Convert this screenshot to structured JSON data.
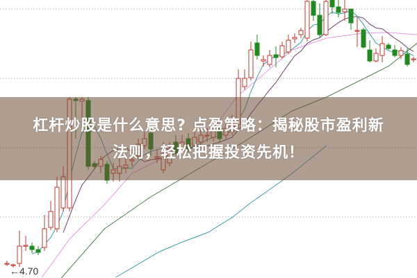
{
  "title": {
    "line1": "杠杆炒股是什么意思? 点盈策略：揭秘股市盈利新",
    "line2": "法则，轻松把握投资先机！"
  },
  "chart_data": {
    "type": "candlestick",
    "price_label": "←4.70",
    "grid": "horizontal-dotted",
    "colors": {
      "up": "#c8342a",
      "down": "#1f8a1f",
      "ma_short": "#3a9ea6",
      "ma_mid": "#6b3f6b",
      "ma_pink": "#e69be6",
      "ma_green": "#4d7d4d",
      "ma_long_cyan": "#3a9ea6"
    },
    "candles": [
      [
        4.8,
        4.8,
        4.84,
        4.76
      ],
      [
        4.77,
        4.78,
        4.8,
        4.74
      ],
      [
        4.8,
        5.05,
        5.27,
        4.75
      ],
      [
        5.05,
        5.06,
        5.2,
        4.98
      ],
      [
        5.05,
        5.0,
        5.1,
        4.95
      ],
      [
        5.0,
        4.96,
        5.05,
        4.92
      ],
      [
        5.03,
        5.3,
        5.5,
        4.98
      ],
      [
        5.32,
        5.55,
        5.7,
        5.28
      ],
      [
        5.3,
        5.9,
        6.05,
        5.25
      ],
      [
        5.6,
        6.05,
        6.2,
        5.55
      ],
      [
        5.6,
        7.17,
        7.2,
        5.55
      ],
      [
        7.17,
        7.15,
        7.2,
        6.6
      ],
      [
        7.14,
        7.17,
        7.2,
        6.9
      ],
      [
        7.15,
        6.2,
        7.2,
        6.15
      ],
      [
        6.24,
        6.2,
        6.28,
        6.16
      ],
      [
        6.2,
        6.3,
        6.35,
        6.1
      ],
      [
        6.23,
        6.0,
        6.28,
        5.95
      ],
      [
        6.1,
        6.15,
        6.25,
        5.98
      ],
      [
        6.1,
        6.2,
        6.35,
        5.98
      ],
      [
        6.18,
        6.22,
        6.38,
        6.1
      ],
      [
        6.28,
        6.3,
        6.45,
        6.2
      ],
      [
        6.35,
        6.52,
        6.6,
        6.3
      ],
      [
        6.5,
        6.6,
        6.7,
        6.45
      ],
      [
        6.68,
        6.45,
        6.75,
        6.35
      ],
      [
        6.32,
        6.34,
        6.45,
        6.25
      ],
      [
        6.15,
        6.4,
        6.55,
        6.1
      ],
      [
        6.25,
        6.45,
        6.55,
        6.2
      ],
      [
        6.55,
        6.4,
        6.65,
        6.35
      ],
      [
        6.42,
        6.55,
        6.65,
        6.38
      ],
      [
        6.6,
        6.45,
        6.68,
        6.38
      ],
      [
        6.5,
        6.62,
        6.7,
        6.45
      ],
      [
        6.55,
        6.65,
        6.75,
        6.5
      ],
      [
        6.64,
        6.65,
        6.75,
        6.55
      ],
      [
        6.62,
        6.72,
        6.82,
        6.56
      ],
      [
        6.75,
        6.6,
        6.8,
        6.55
      ],
      [
        6.65,
        6.75,
        6.85,
        6.6
      ],
      [
        6.7,
        6.82,
        6.95,
        6.65
      ],
      [
        6.8,
        7.47,
        7.6,
        6.75
      ],
      [
        7.35,
        7.47,
        7.6,
        7.3
      ],
      [
        7.48,
        7.88,
        8.0,
        7.44
      ],
      [
        7.98,
        7.8,
        8.1,
        7.74
      ],
      [
        7.72,
        7.74,
        7.8,
        7.64
      ],
      [
        7.67,
        7.8,
        7.88,
        7.63
      ],
      [
        7.81,
        7.77,
        7.93,
        7.63
      ],
      [
        7.78,
        7.94,
        8.0,
        7.75
      ],
      [
        7.85,
        8.02,
        8.1,
        7.82
      ],
      [
        8.04,
        8.06,
        8.12,
        7.98
      ],
      [
        8.1,
        8.16,
        8.2,
        8.05
      ],
      [
        8.05,
        8.58,
        8.6,
        8.0
      ],
      [
        8.58,
        8.38,
        8.6,
        8.3
      ],
      [
        8.38,
        8.1,
        8.55,
        8.05
      ],
      [
        8.1,
        8.58,
        8.6,
        8.08
      ],
      [
        8.6,
        8.5,
        8.6,
        8.4
      ],
      [
        8.5,
        8.42,
        8.6,
        8.35
      ],
      [
        8.43,
        8.47,
        8.6,
        8.3
      ],
      [
        8.47,
        8.27,
        8.47,
        8.17
      ],
      [
        8.16,
        8.16,
        8.35,
        7.92
      ],
      [
        8.17,
        7.92,
        8.2,
        7.9
      ],
      [
        7.88,
        7.72,
        8.02,
        7.7
      ],
      [
        7.72,
        7.83,
        7.9,
        7.7
      ],
      [
        7.8,
        7.97,
        8.08,
        7.7
      ],
      [
        7.95,
        7.9,
        7.98,
        7.88
      ],
      [
        7.88,
        7.8,
        7.95,
        7.77
      ],
      [
        7.8,
        7.87,
        7.92,
        7.75
      ],
      [
        7.82,
        7.67,
        7.9,
        7.64
      ],
      [
        7.74,
        7.75,
        7.78,
        7.7
      ]
    ],
    "candle_format": [
      "open",
      "close",
      "high",
      "low"
    ],
    "moving_averages_computed": [
      5,
      10
    ],
    "ma_lines": {
      "pink": [
        [
          5.6,
          4.6
        ],
        [
          10,
          5.15
        ],
        [
          15.6,
          5.65
        ],
        [
          20,
          6.1
        ],
        [
          26.7,
          6.4
        ],
        [
          32.2,
          6.65
        ],
        [
          36.7,
          7.2
        ],
        [
          40,
          7.45
        ],
        [
          45.6,
          7.88
        ],
        [
          51.1,
          8.05
        ],
        [
          56.7,
          8.12
        ],
        [
          61.1,
          8.13
        ],
        [
          65.6,
          8.1
        ]
      ],
      "green": [
        [
          8.7,
          4.59
        ],
        [
          15.6,
          5.3
        ],
        [
          22.8,
          5.75
        ],
        [
          32.2,
          6.25
        ],
        [
          37.8,
          6.55
        ],
        [
          45.6,
          7.0
        ],
        [
          51.1,
          7.2
        ],
        [
          57.8,
          7.5
        ],
        [
          61.1,
          7.65
        ],
        [
          65.6,
          7.98
        ]
      ],
      "long_cyan": [
        [
          17.4,
          4.6
        ],
        [
          24.4,
          4.97
        ],
        [
          27.8,
          5.1
        ],
        [
          32.2,
          5.25
        ],
        [
          36.1,
          5.47
        ],
        [
          38.9,
          5.67
        ],
        [
          43.3,
          5.95
        ],
        [
          45.6,
          6.1
        ],
        [
          51.1,
          6.5
        ]
      ]
    },
    "gridline_prices": [
      8.47,
      7.47,
      6.47,
      5.47
    ]
  }
}
